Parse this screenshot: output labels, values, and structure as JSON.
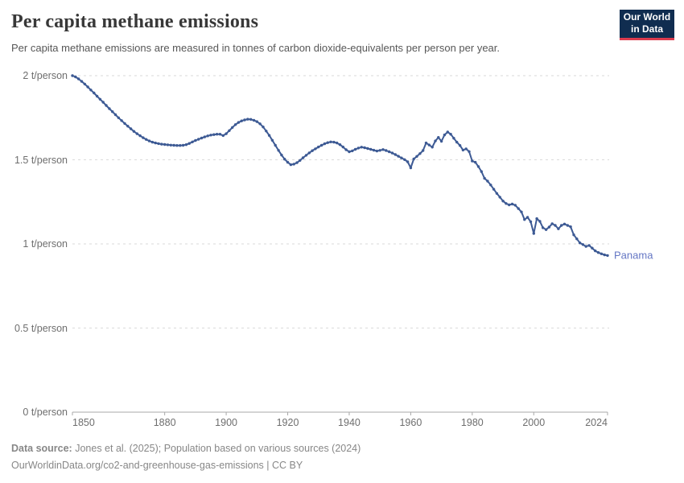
{
  "header": {
    "title": "Per capita methane emissions",
    "subtitle": "Per capita methane emissions are measured in tonnes of carbon dioxide-equivalents per person per year.",
    "logo": {
      "line1": "Our World",
      "line2": "in Data"
    }
  },
  "chart_data": {
    "type": "line",
    "title": "Per capita methane emissions",
    "unit": "t/person",
    "grid": "horizontal dashed",
    "legend_position": "end-of-line label",
    "x_axis": {
      "min": 1850,
      "max": 2024,
      "ticks": [
        1850,
        1880,
        1900,
        1920,
        1940,
        1960,
        1980,
        2000,
        2024
      ]
    },
    "y_axis": {
      "min": 0,
      "max": 2,
      "ticks": [
        0,
        0.5,
        1,
        1.5,
        2
      ],
      "tick_labels": [
        "0 t/person",
        "0.5 t/person",
        "1 t/person",
        "1.5 t/person",
        "2 t/person"
      ]
    },
    "series": [
      {
        "name": "Panama",
        "color": "#3d5a94",
        "label_color": "#6577c4",
        "year_start": 1850,
        "values": [
          2.0,
          1.993,
          1.981,
          1.966,
          1.95,
          1.933,
          1.915,
          1.897,
          1.878,
          1.86,
          1.842,
          1.823,
          1.804,
          1.786,
          1.768,
          1.75,
          1.733,
          1.716,
          1.7,
          1.684,
          1.669,
          1.655,
          1.643,
          1.631,
          1.621,
          1.612,
          1.605,
          1.6,
          1.596,
          1.593,
          1.591,
          1.589,
          1.587,
          1.586,
          1.585,
          1.585,
          1.586,
          1.59,
          1.597,
          1.606,
          1.615,
          1.622,
          1.629,
          1.636,
          1.642,
          1.647,
          1.65,
          1.652,
          1.652,
          1.644,
          1.655,
          1.673,
          1.692,
          1.709,
          1.722,
          1.731,
          1.737,
          1.741,
          1.74,
          1.735,
          1.727,
          1.714,
          1.695,
          1.671,
          1.645,
          1.616,
          1.586,
          1.556,
          1.528,
          1.504,
          1.485,
          1.471,
          1.474,
          1.483,
          1.496,
          1.512,
          1.527,
          1.541,
          1.554,
          1.565,
          1.576,
          1.586,
          1.595,
          1.602,
          1.606,
          1.605,
          1.6,
          1.59,
          1.576,
          1.56,
          1.548,
          1.553,
          1.562,
          1.57,
          1.575,
          1.572,
          1.567,
          1.562,
          1.557,
          1.552,
          1.556,
          1.561,
          1.555,
          1.548,
          1.54,
          1.531,
          1.521,
          1.511,
          1.501,
          1.488,
          1.452,
          1.505,
          1.52,
          1.537,
          1.555,
          1.6,
          1.588,
          1.575,
          1.612,
          1.633,
          1.61,
          1.648,
          1.665,
          1.652,
          1.628,
          1.605,
          1.585,
          1.558,
          1.565,
          1.549,
          1.493,
          1.485,
          1.46,
          1.43,
          1.39,
          1.373,
          1.35,
          1.325,
          1.3,
          1.278,
          1.255,
          1.24,
          1.232,
          1.237,
          1.23,
          1.21,
          1.19,
          1.145,
          1.158,
          1.132,
          1.062,
          1.15,
          1.134,
          1.096,
          1.085,
          1.1,
          1.12,
          1.11,
          1.09,
          1.11,
          1.118,
          1.11,
          1.102,
          1.054,
          1.03,
          1.006,
          0.996,
          0.985,
          0.991,
          0.975,
          0.959,
          0.949,
          0.941,
          0.935,
          0.931
        ]
      }
    ]
  },
  "footer": {
    "source_label": "Data source:",
    "source_text": "Jones et al. (2025); Population based on various sources (2024)",
    "url_line": "OurWorldinData.org/co2-and-greenhouse-gas-emissions | CC BY"
  },
  "colors": {
    "line": "#3d5a94",
    "series_label": "#6577c4",
    "gridline": "#dadada",
    "axis": "#a8a8a8",
    "logo_bg": "#102d50",
    "logo_red": "#dc3c4e"
  }
}
